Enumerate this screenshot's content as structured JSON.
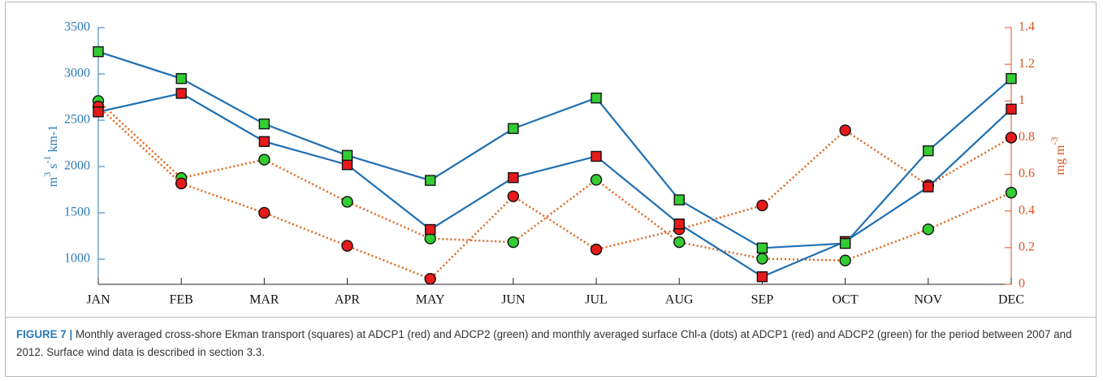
{
  "chart_data": {
    "type": "line",
    "categories": [
      "JAN",
      "FEB",
      "MAR",
      "APR",
      "MAY",
      "JUN",
      "JUL",
      "AUG",
      "SEP",
      "OCT",
      "NOV",
      "DEC"
    ],
    "y_label": [
      "m",
      "3",
      " s",
      "-1",
      " km-1"
    ],
    "y2_label": [
      "mg m",
      "-3"
    ],
    "ylim": [
      728,
      3500
    ],
    "yticks": [
      1000,
      1500,
      2000,
      2500,
      3000,
      3500
    ],
    "y2lim": [
      0,
      1.4
    ],
    "y2ticks": [
      0,
      0.2,
      0.4,
      0.6,
      0.8,
      1,
      1.2,
      1.4
    ],
    "y_color": "#2a7ab8",
    "y2_color": "#d9531e",
    "series": [
      {
        "color": "#1f6fb2",
        "marker": "square",
        "marker_color": "#33cc33",
        "line_style": "solid",
        "axis": "y",
        "values": [
          3240,
          2950,
          2460,
          2120,
          1850,
          2410,
          2740,
          1640,
          1120,
          1170,
          2170,
          2950
        ]
      },
      {
        "color": "#1f6fb2",
        "marker": "square",
        "marker_color": "#e61a1a",
        "line_style": "solid",
        "axis": "y",
        "values": [
          2590,
          2790,
          2270,
          2020,
          1320,
          1880,
          2110,
          1380,
          810,
          1190,
          1780,
          2620
        ]
      },
      {
        "color": "#e0661c",
        "marker": "circle",
        "marker_color": "#e61a1a",
        "line_style": "dotted",
        "axis": "y2",
        "values": [
          0.97,
          0.55,
          0.39,
          0.21,
          0.03,
          0.48,
          0.19,
          0.3,
          0.43,
          0.84,
          0.54,
          0.8
        ]
      },
      {
        "color": "#e0661c",
        "marker": "circle",
        "marker_color": "#33cc33",
        "line_style": "dotted",
        "axis": "y2",
        "values": [
          1.0,
          0.58,
          0.68,
          0.45,
          0.25,
          0.23,
          0.57,
          0.23,
          0.14,
          0.13,
          0.3,
          0.5
        ]
      }
    ]
  },
  "caption": {
    "label": "FIGURE 7 |",
    "text": "Monthly averaged cross-shore Ekman transport (squares) at ADCP1 (red) and ADCP2 (green) and monthly averaged surface Chl-a (dots) at ADCP1 (red) and ADCP2 (green) for the period between 2007 and 2012. Surface wind data is described in section 3.3."
  }
}
